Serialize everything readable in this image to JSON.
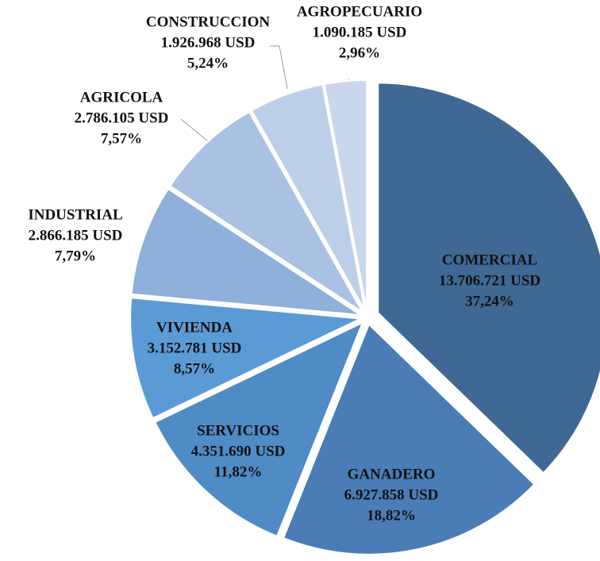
{
  "chart_data": {
    "type": "pie",
    "categories": [
      "COMERCIAL",
      "GANADERO",
      "SERVICIOS",
      "VIVIENDA",
      "INDUSTRIAL",
      "AGRICOLA",
      "CONSTRUCCION",
      "AGROPECUARIO"
    ],
    "values": [
      13706721,
      6927858,
      4351690,
      3152781,
      2866185,
      2786105,
      1926968,
      1090185
    ],
    "value_labels": [
      "13.706.721 USD",
      "6.927.858 USD",
      "4.351.690 USD",
      "3.152.781 USD",
      "2.866.185 USD",
      "2.786.105 USD",
      "1.926.968 USD",
      "1.090.185 USD"
    ],
    "percents": [
      37.24,
      18.82,
      11.82,
      8.57,
      7.79,
      7.57,
      5.24,
      2.96
    ],
    "percent_labels": [
      "37,24%",
      "18,82%",
      "11,82%",
      "8,57%",
      "7,79%",
      "7,57%",
      "5,24%",
      "2,96%"
    ],
    "colors": [
      "#3f6894",
      "#4a7db5",
      "#4f8bc5",
      "#5b9bd5",
      "#8eb0da",
      "#a9c2e3",
      "#bccfe9",
      "#c9d7ec"
    ]
  }
}
